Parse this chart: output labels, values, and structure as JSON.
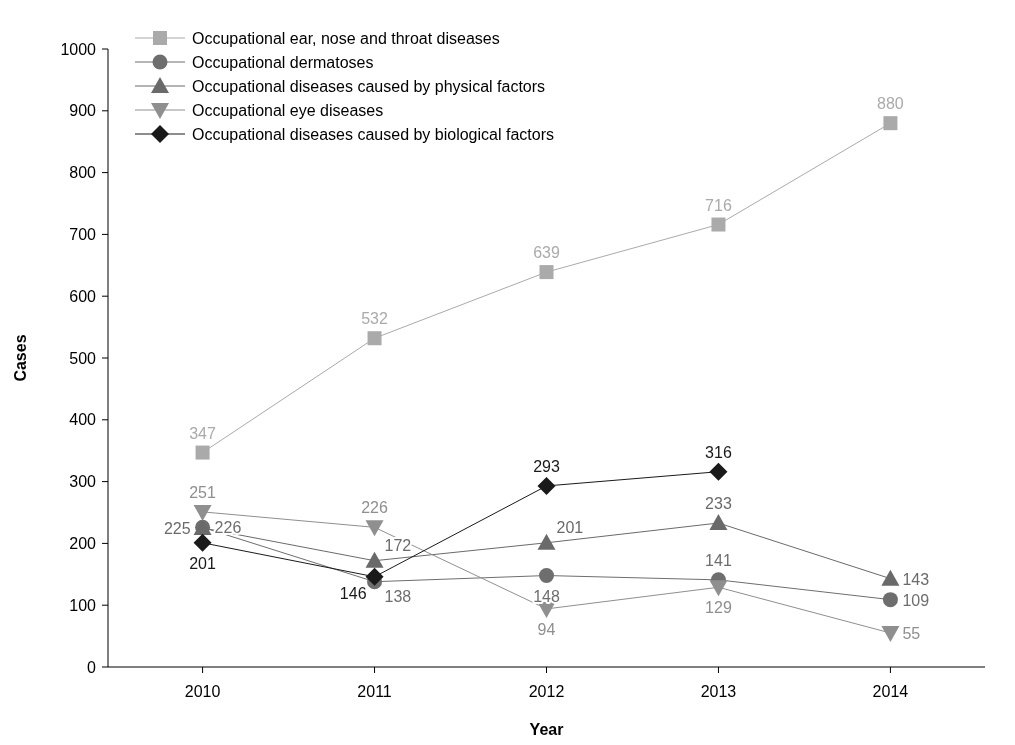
{
  "chart_data": {
    "type": "line",
    "xlabel": "Year",
    "ylabel": "Cases",
    "categories": [
      "2010",
      "2011",
      "2012",
      "2013",
      "2014"
    ],
    "series": [
      {
        "name": "Occupational ear, nose and throat diseases",
        "color": "#aaaaaa",
        "marker": "square",
        "values": [
          347,
          532,
          639,
          716,
          880
        ]
      },
      {
        "name": "Occupational dermatoses",
        "color": "#6e6e6e",
        "marker": "circle",
        "values": [
          226,
          138,
          148,
          141,
          109
        ]
      },
      {
        "name": "Occupational diseases caused by physical factors",
        "color": "#6a6a6a",
        "marker": "triangle",
        "values": [
          225,
          172,
          201,
          233,
          143
        ]
      },
      {
        "name": "Occupational eye diseases",
        "color": "#8f8f8f",
        "marker": "triangle-down",
        "values": [
          251,
          226,
          94,
          129,
          55
        ]
      },
      {
        "name": "Occupational diseases caused by biological factors",
        "color": "#1a1a1a",
        "marker": "diamond",
        "values": [
          201,
          146,
          293,
          316,
          null
        ]
      }
    ],
    "ylim": [
      0,
      1000
    ],
    "yticks": [
      0,
      100,
      200,
      300,
      400,
      500,
      600,
      700,
      800,
      900,
      1000
    ],
    "legend": "top left",
    "data_labels": true,
    "grid": false
  }
}
